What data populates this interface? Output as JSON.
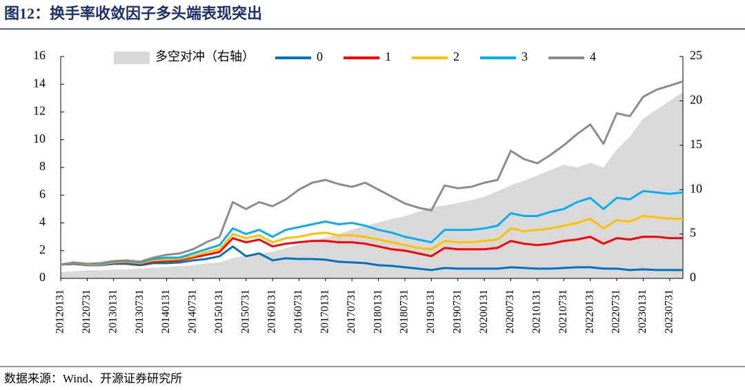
{
  "title": "图12：换手率收敛因子多头端表现突出",
  "source": "数据来源：Wind、开源证券研究所",
  "chart_data": {
    "type": "line",
    "categories": [
      "20120131",
      null,
      "20120731",
      null,
      "20130131",
      null,
      "20130731",
      null,
      "20140131",
      null,
      "20140731",
      null,
      "20150131",
      null,
      "20150731",
      null,
      "20160131",
      null,
      "20160731",
      null,
      "20170131",
      null,
      "20170731",
      null,
      "20180131",
      null,
      "20180731",
      null,
      "20190131",
      null,
      "20190731",
      null,
      "20200131",
      null,
      "20200731",
      null,
      "20210131",
      null,
      "20210731",
      null,
      "20220131",
      null,
      "20220731",
      null,
      "20230131",
      null,
      "20230731",
      null
    ],
    "ylim": [
      0,
      16
    ],
    "yticks": [
      0,
      2,
      4,
      6,
      8,
      10,
      12,
      14,
      16
    ],
    "y2lim": [
      0,
      25
    ],
    "y2ticks": [
      0,
      5,
      10,
      15,
      20,
      25
    ],
    "series": [
      {
        "name": "多空对冲（右轴）",
        "type": "area",
        "axis": "y2",
        "color": "#d9d9d9",
        "values": [
          0.7,
          0.8,
          0.9,
          0.9,
          1.0,
          1.0,
          1.1,
          1.2,
          1.3,
          1.4,
          1.5,
          1.7,
          1.8,
          2.3,
          2.6,
          2.8,
          3.0,
          3.4,
          3.8,
          4.2,
          4.6,
          5.0,
          5.5,
          5.9,
          6.3,
          6.7,
          7.0,
          7.5,
          8.0,
          8.2,
          8.5,
          8.8,
          9.2,
          9.8,
          10.5,
          11.0,
          11.6,
          12.2,
          12.8,
          12.5,
          13.0,
          12.5,
          14.5,
          16.0,
          18.0,
          19.0,
          20.0,
          21.0
        ]
      },
      {
        "name": "0",
        "color": "#0070c0",
        "values": [
          1.0,
          1.05,
          0.95,
          0.95,
          1.05,
          1.05,
          0.95,
          1.1,
          1.1,
          1.15,
          1.3,
          1.4,
          1.6,
          2.3,
          1.6,
          1.8,
          1.3,
          1.45,
          1.4,
          1.4,
          1.35,
          1.2,
          1.15,
          1.1,
          0.95,
          0.9,
          0.8,
          0.7,
          0.6,
          0.75,
          0.7,
          0.7,
          0.7,
          0.7,
          0.8,
          0.75,
          0.7,
          0.7,
          0.75,
          0.8,
          0.8,
          0.7,
          0.7,
          0.6,
          0.65,
          0.6,
          0.6,
          0.6
        ]
      },
      {
        "name": "1",
        "color": "#ff0000",
        "values": [
          1.0,
          1.05,
          1.0,
          1.0,
          1.1,
          1.15,
          1.05,
          1.2,
          1.25,
          1.3,
          1.5,
          1.7,
          1.9,
          2.9,
          2.6,
          2.8,
          2.3,
          2.5,
          2.6,
          2.7,
          2.7,
          2.6,
          2.6,
          2.5,
          2.3,
          2.1,
          2.0,
          1.8,
          1.6,
          2.2,
          2.1,
          2.1,
          2.1,
          2.2,
          2.7,
          2.5,
          2.4,
          2.5,
          2.7,
          2.8,
          3.0,
          2.5,
          2.9,
          2.8,
          3.0,
          3.0,
          2.9,
          2.9
        ]
      },
      {
        "name": "2",
        "color": "#ffc000",
        "values": [
          1.0,
          1.1,
          1.0,
          1.0,
          1.15,
          1.2,
          1.1,
          1.3,
          1.35,
          1.4,
          1.6,
          1.9,
          2.1,
          3.2,
          2.9,
          3.1,
          2.6,
          2.9,
          3.0,
          3.2,
          3.3,
          3.1,
          3.1,
          3.0,
          2.8,
          2.6,
          2.4,
          2.2,
          2.1,
          2.7,
          2.6,
          2.6,
          2.7,
          2.8,
          3.6,
          3.4,
          3.5,
          3.6,
          3.8,
          4.0,
          4.3,
          3.6,
          4.2,
          4.1,
          4.5,
          4.4,
          4.3,
          4.3
        ]
      },
      {
        "name": "3",
        "color": "#00b0f0",
        "values": [
          1.0,
          1.1,
          1.05,
          1.05,
          1.2,
          1.25,
          1.15,
          1.4,
          1.5,
          1.5,
          1.8,
          2.1,
          2.4,
          3.6,
          3.2,
          3.5,
          3.0,
          3.5,
          3.7,
          3.9,
          4.1,
          3.9,
          4.0,
          3.8,
          3.5,
          3.3,
          3.0,
          2.8,
          2.6,
          3.5,
          3.5,
          3.5,
          3.6,
          3.8,
          4.7,
          4.5,
          4.5,
          4.8,
          5.0,
          5.5,
          5.8,
          5.0,
          5.8,
          5.7,
          6.3,
          6.2,
          6.1,
          6.2
        ]
      },
      {
        "name": "4",
        "color": "#8c8c8c",
        "values": [
          1.0,
          1.15,
          1.05,
          1.1,
          1.25,
          1.3,
          1.2,
          1.5,
          1.7,
          1.8,
          2.1,
          2.6,
          3.0,
          5.5,
          5.0,
          5.5,
          5.2,
          5.7,
          6.4,
          6.9,
          7.1,
          6.8,
          6.6,
          6.9,
          6.4,
          5.9,
          5.4,
          5.1,
          4.9,
          6.7,
          6.5,
          6.6,
          6.9,
          7.1,
          9.2,
          8.6,
          8.3,
          8.9,
          9.6,
          10.4,
          11.1,
          9.7,
          11.9,
          11.7,
          13.1,
          13.6,
          13.9,
          14.2
        ]
      }
    ]
  }
}
